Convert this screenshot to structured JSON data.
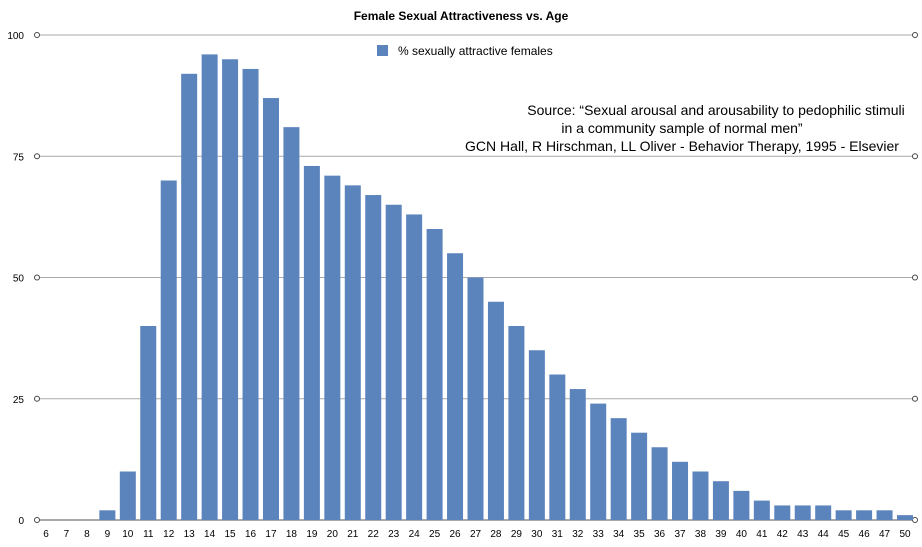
{
  "chart_data": {
    "type": "bar",
    "title": "Female Sexual Attractiveness vs. Age",
    "xlabel": "",
    "ylabel": "",
    "ylim": [
      0,
      100
    ],
    "yticks": [
      0,
      25,
      50,
      75,
      100
    ],
    "grid": true,
    "legend_position": "top-center",
    "bar_color": "#5b84bc",
    "categories": [
      "6",
      "7",
      "8",
      "9",
      "10",
      "11",
      "12",
      "13",
      "14",
      "15",
      "16",
      "17",
      "18",
      "19",
      "20",
      "21",
      "22",
      "23",
      "24",
      "25",
      "26",
      "27",
      "28",
      "29",
      "30",
      "31",
      "32",
      "33",
      "34",
      "35",
      "36",
      "37",
      "38",
      "39",
      "40",
      "41",
      "42",
      "43",
      "44",
      "45",
      "46",
      "47",
      "50"
    ],
    "series": [
      {
        "name": "% sexually attractive females",
        "values": [
          0,
          0,
          0,
          2,
          10,
          40,
          70,
          92,
          96,
          95,
          93,
          87,
          81,
          73,
          71,
          69,
          67,
          65,
          63,
          60,
          55,
          50,
          45,
          40,
          35,
          30,
          27,
          24,
          21,
          18,
          15,
          12,
          10,
          8,
          6,
          4,
          3,
          3,
          3,
          2,
          2,
          2,
          1
        ]
      }
    ],
    "annotations": [
      "Source: “Sexual arousal and arousability to pedophilic stimuli",
      "in a community sample of normal men”",
      "GCN Hall, R Hirschman, LL Oliver - Behavior Therapy, 1995 - Elsevier"
    ]
  }
}
